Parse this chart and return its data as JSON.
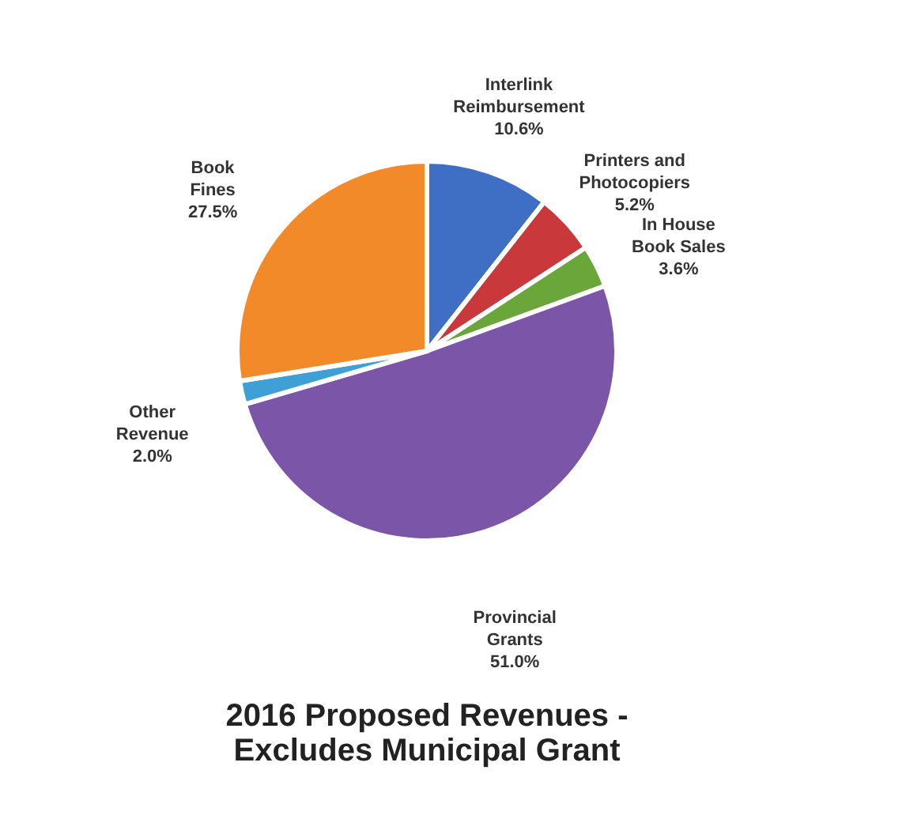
{
  "chart_data": {
    "type": "pie",
    "title": "2016 Proposed Revenues - Excludes Municipal Grant",
    "categories": [
      "Interlink Reimbursement",
      "Printers and Photocopiers",
      "In House Book Sales",
      "Provincial Grants",
      "Other Revenue",
      "Book Fines"
    ],
    "values": [
      10.6,
      5.2,
      3.6,
      51.0,
      2.0,
      27.5
    ],
    "value_labels": [
      "10.6%",
      "5.2%",
      "3.6%",
      "51.0%",
      "2.0%",
      "27.5%"
    ],
    "colors": [
      "#3f6fc4",
      "#c9383a",
      "#6aa63a",
      "#7b55a8",
      "#3fa0d6",
      "#f28a2a"
    ],
    "legend": false
  }
}
